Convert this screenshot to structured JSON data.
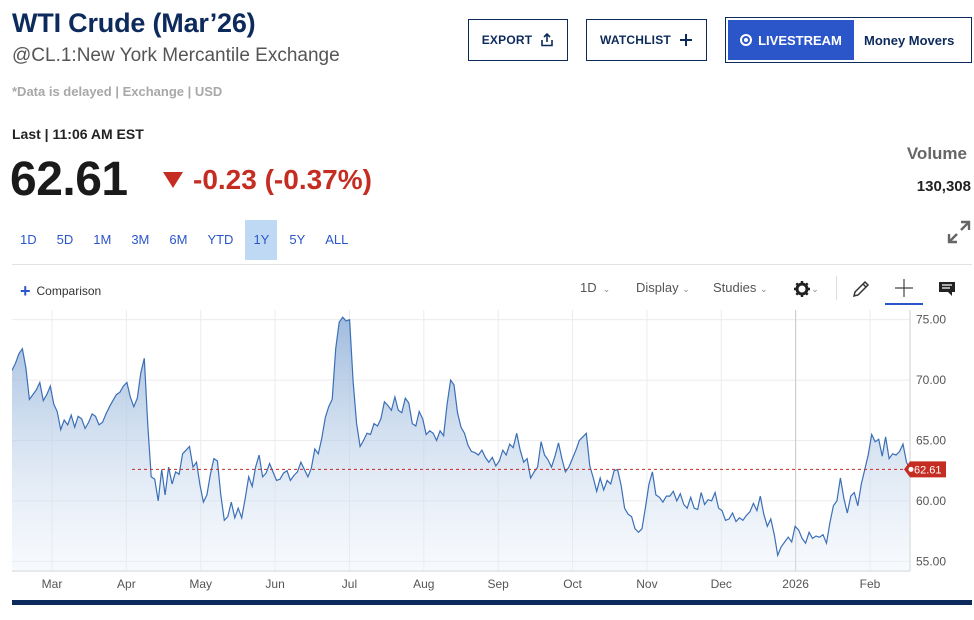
{
  "header": {
    "title": "WTI Crude (Mar’26)",
    "subtitle": "@CL.1:New York Mercantile Exchange",
    "delayed": "*Data is delayed | Exchange | USD"
  },
  "actions": {
    "export_label": "EXPORT",
    "watchlist_label": "WATCHLIST",
    "livestream_label": "LIVESTREAM",
    "livestream_show": "Money Movers"
  },
  "quote": {
    "last_label": "Last | 11:06 AM EST",
    "price": "62.61",
    "change": "-0.23 (-0.37%)",
    "direction": "down",
    "volume_label": "Volume",
    "volume_value": "130,308"
  },
  "ranges": [
    "1D",
    "5D",
    "1M",
    "3M",
    "6M",
    "YTD",
    "1Y",
    "5Y",
    "ALL"
  ],
  "active_range": "1Y",
  "toolbar": {
    "comparison_label": "Comparison",
    "interval_label": "1D",
    "display_label": "Display",
    "studies_label": "Studies"
  },
  "icons": {
    "export": "share-icon",
    "watchlist": "plus-icon",
    "expand": "expand-icon",
    "settings": "gear-icon",
    "draw": "pencil-icon",
    "crosshair": "crosshair-icon",
    "comment": "comment-icon"
  },
  "colors": {
    "accent": "#2b56c9",
    "navy": "#0d2a5c",
    "down": "#c62d22",
    "line": "#3b6fb6"
  },
  "chart_data": {
    "type": "area",
    "x_labels": [
      "Mar",
      "Apr",
      "May",
      "Jun",
      "Jul",
      "Aug",
      "Sep",
      "Oct",
      "Nov",
      "Dec",
      "2026",
      "Feb"
    ],
    "y_ticks": [
      "75.00",
      "70.00",
      "65.00",
      "60.00",
      "55.00"
    ],
    "ylim": [
      54.2,
      75.8
    ],
    "grid": true,
    "last_value": 62.61,
    "last_value_label": "62.61",
    "year_marker_index": 10,
    "y": [
      70.8,
      71.4,
      72.2,
      72.6,
      71.0,
      68.4,
      68.8,
      69.2,
      69.8,
      68.3,
      68.8,
      69.5,
      68.0,
      67.4,
      65.9,
      66.7,
      66.3,
      67.1,
      66.1,
      67.0,
      66.8,
      66.0,
      66.5,
      67.2,
      67.0,
      66.3,
      66.5,
      67.2,
      67.8,
      68.3,
      68.8,
      69.0,
      69.5,
      69.8,
      68.6,
      67.8,
      68.5,
      70.6,
      71.8,
      66.4,
      62.0,
      61.8,
      60.0,
      62.6,
      60.5,
      62.8,
      61.4,
      62.4,
      62.2,
      63.9,
      64.2,
      64.5,
      62.8,
      63.2,
      61.3,
      59.9,
      60.5,
      62.2,
      63.5,
      63.3,
      60.5,
      58.4,
      58.7,
      59.9,
      58.6,
      59.4,
      58.6,
      60.2,
      62.0,
      61.2,
      62.8,
      63.8,
      62.0,
      62.3,
      63.1,
      62.4,
      61.7,
      61.8,
      62.3,
      62.5,
      61.7,
      62.1,
      62.4,
      63.2,
      62.6,
      62.0,
      62.7,
      64.3,
      63.9,
      65.2,
      66.9,
      67.8,
      68.4,
      72.6,
      74.8,
      75.2,
      74.9,
      75.0,
      69.9,
      66.4,
      64.5,
      65.0,
      65.6,
      65.5,
      66.4,
      66.2,
      66.8,
      68.2,
      67.9,
      67.5,
      68.6,
      67.5,
      67.3,
      68.5,
      68.1,
      66.4,
      66.2,
      67.4,
      66.8,
      65.5,
      65.8,
      65.6,
      65.0,
      65.8,
      65.4,
      68.0,
      70.0,
      69.6,
      67.3,
      66.1,
      65.6,
      64.6,
      64.1,
      64.0,
      63.8,
      64.2,
      63.6,
      63.2,
      63.6,
      62.9,
      63.3,
      64.2,
      63.8,
      64.7,
      64.4,
      65.6,
      64.2,
      63.2,
      63.5,
      61.9,
      62.4,
      62.8,
      64.9,
      63.8,
      63.4,
      62.8,
      63.7,
      64.8,
      63.5,
      62.4,
      62.8,
      63.5,
      64.2,
      65.0,
      65.3,
      65.6,
      62.9,
      61.9,
      60.8,
      61.9,
      60.9,
      61.7,
      61.4,
      62.5,
      62.6,
      61.3,
      59.4,
      58.9,
      58.7,
      57.7,
      57.4,
      57.7,
      59.5,
      61.4,
      62.4,
      60.5,
      60.3,
      59.9,
      60.4,
      60.4,
      60.8,
      60.0,
      60.6,
      59.7,
      59.4,
      60.3,
      59.4,
      59.3,
      60.7,
      59.7,
      60.1,
      60.0,
      60.7,
      59.4,
      59.2,
      58.4,
      58.5,
      59.0,
      58.3,
      58.6,
      58.4,
      58.8,
      59.1,
      59.8,
      59.2,
      60.4,
      58.9,
      57.9,
      58.5,
      57.2,
      55.5,
      56.2,
      56.6,
      57.0,
      56.6,
      57.9,
      57.6,
      56.9,
      56.5,
      57.4,
      56.9,
      57.1,
      57.0,
      57.2,
      56.5,
      58.2,
      59.6,
      60.0,
      61.9,
      60.2,
      59.0,
      60.4,
      60.7,
      59.6,
      61.4,
      62.6,
      63.8,
      65.5,
      64.9,
      65.1,
      63.7,
      65.3,
      63.5,
      63.9,
      63.8,
      64.1,
      64.7,
      63.2,
      62.61
    ]
  }
}
